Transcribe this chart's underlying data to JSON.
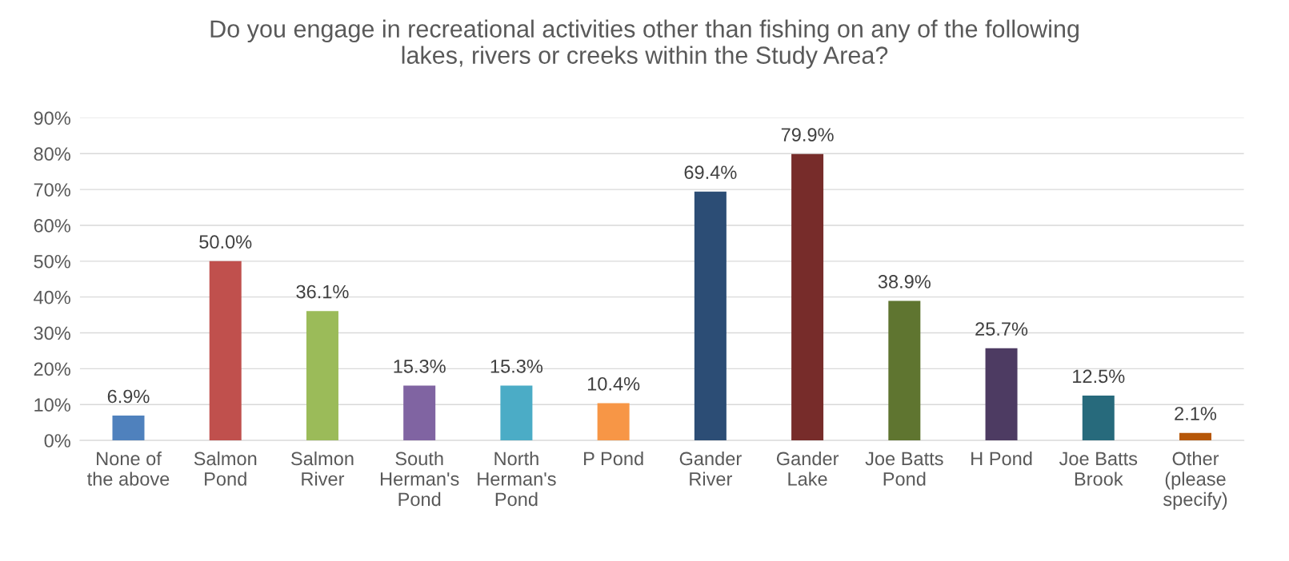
{
  "chart_data": {
    "type": "bar",
    "title": "Do you engage in recreational activities other than fishing on any of the following\nlakes, rivers or creeks within the Study Area?",
    "categories": [
      "None of\nthe above",
      "Salmon\nPond",
      "Salmon\nRiver",
      "South\nHerman's\nPond",
      "North\nHerman's\nPond",
      "P Pond",
      "Gander\nRiver",
      "Gander\nLake",
      "Joe Batts\nPond",
      "H Pond",
      "Joe Batts\nBrook",
      "Other\n(please\nspecify)"
    ],
    "values": [
      6.9,
      50.0,
      36.1,
      15.3,
      15.3,
      10.4,
      69.4,
      79.9,
      38.9,
      25.7,
      12.5,
      2.1
    ],
    "value_labels": [
      "6.9%",
      "50.0%",
      "36.1%",
      "15.3%",
      "15.3%",
      "10.4%",
      "69.4%",
      "79.9%",
      "38.9%",
      "25.7%",
      "12.5%",
      "2.1%"
    ],
    "colors": [
      "#4f81bd",
      "#c0504d",
      "#9bbb59",
      "#8064a2",
      "#4bacc6",
      "#f79646",
      "#2c4d75",
      "#772c2a",
      "#5f7530",
      "#4d3b62",
      "#276a7c",
      "#b65708"
    ],
    "ylim": [
      0,
      90
    ],
    "yticks": [
      {
        "value": 0,
        "label": "0%"
      },
      {
        "value": 10,
        "label": "10%"
      },
      {
        "value": 20,
        "label": "20%"
      },
      {
        "value": 30,
        "label": "30%"
      },
      {
        "value": 40,
        "label": "40%"
      },
      {
        "value": 50,
        "label": "50%"
      },
      {
        "value": 60,
        "label": "60%"
      },
      {
        "value": 70,
        "label": "70%"
      },
      {
        "value": 80,
        "label": "80%"
      },
      {
        "value": 90,
        "label": "90%"
      }
    ],
    "grid": "y"
  }
}
